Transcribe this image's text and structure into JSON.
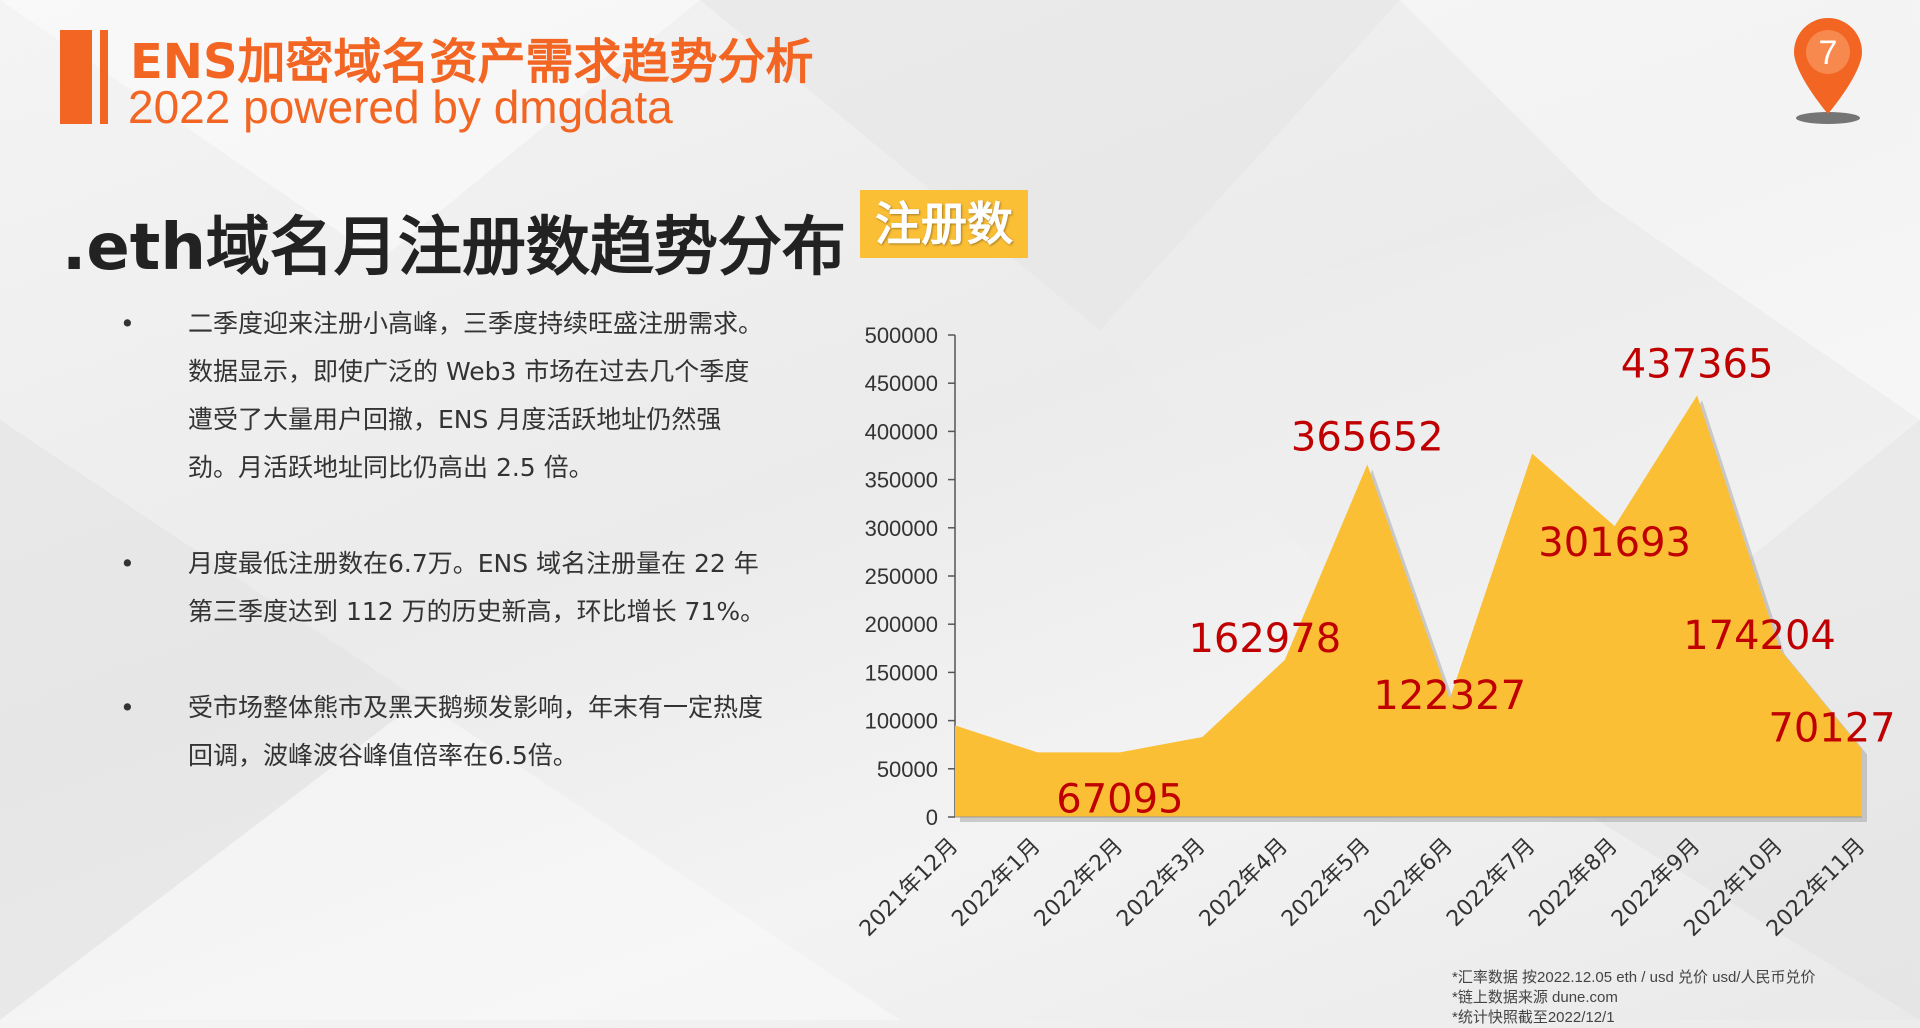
{
  "header": {
    "title": "ENS加密域名资产需求趋势分析",
    "subtitle": "2022 powered by dmgdata",
    "page_number": "7"
  },
  "section": {
    "title": ".eth域名月注册数趋势分布",
    "metric_tag": "注册数"
  },
  "bullets": [
    "二季度迎来注册小高峰，三季度持续旺盛注册需求。数据显示，即使广泛的 Web3 市场在过去几个季度遭受了大量用户回撤，ENS 月度活跃地址仍然强劲。月活跃地址同比仍高出 2.5 倍。",
    "月度最低注册数在6.7万。ENS 域名注册量在 22 年第三季度达到 112 万的历史新高，环比增长 71%。",
    "受市场整体熊市及黑天鹅频发影响，年末有一定热度回调，波峰波谷峰值倍率在6.5倍。"
  ],
  "notes": [
    "*汇率数据 按2022.12.05 eth / usd 兑价 usd/人民币兑价",
    "*链上数据来源 dune.com",
    "*统计快照截至2022/12/1"
  ],
  "colors": {
    "accent": "#f26522",
    "area_fill": "#fbbf36",
    "label": "#c00000"
  },
  "chart_data": {
    "type": "area",
    "categories": [
      "2021年12月",
      "2022年1月",
      "2022年2月",
      "2022年3月",
      "2022年4月",
      "2022年5月",
      "2022年6月",
      "2022年7月",
      "2022年8月",
      "2022年9月",
      "2022年10月",
      "2022年11月"
    ],
    "series": [
      {
        "values": [
          95000,
          67000,
          67095,
          83000,
          162978,
          365652,
          122327,
          377000,
          301693,
          437365,
          174204,
          70127
        ]
      }
    ],
    "data_labels": [
      "",
      "",
      "67095",
      "",
      "162978",
      "365652",
      "122327",
      "",
      "301693",
      "437365",
      "174204",
      "70127"
    ],
    "y_ticks": [
      "0",
      "50000",
      "100000",
      "150000",
      "200000",
      "250000",
      "300000",
      "350000",
      "400000",
      "450000",
      "500000"
    ],
    "ylim": [
      0,
      500000
    ],
    "grid": false,
    "legend": "none"
  }
}
